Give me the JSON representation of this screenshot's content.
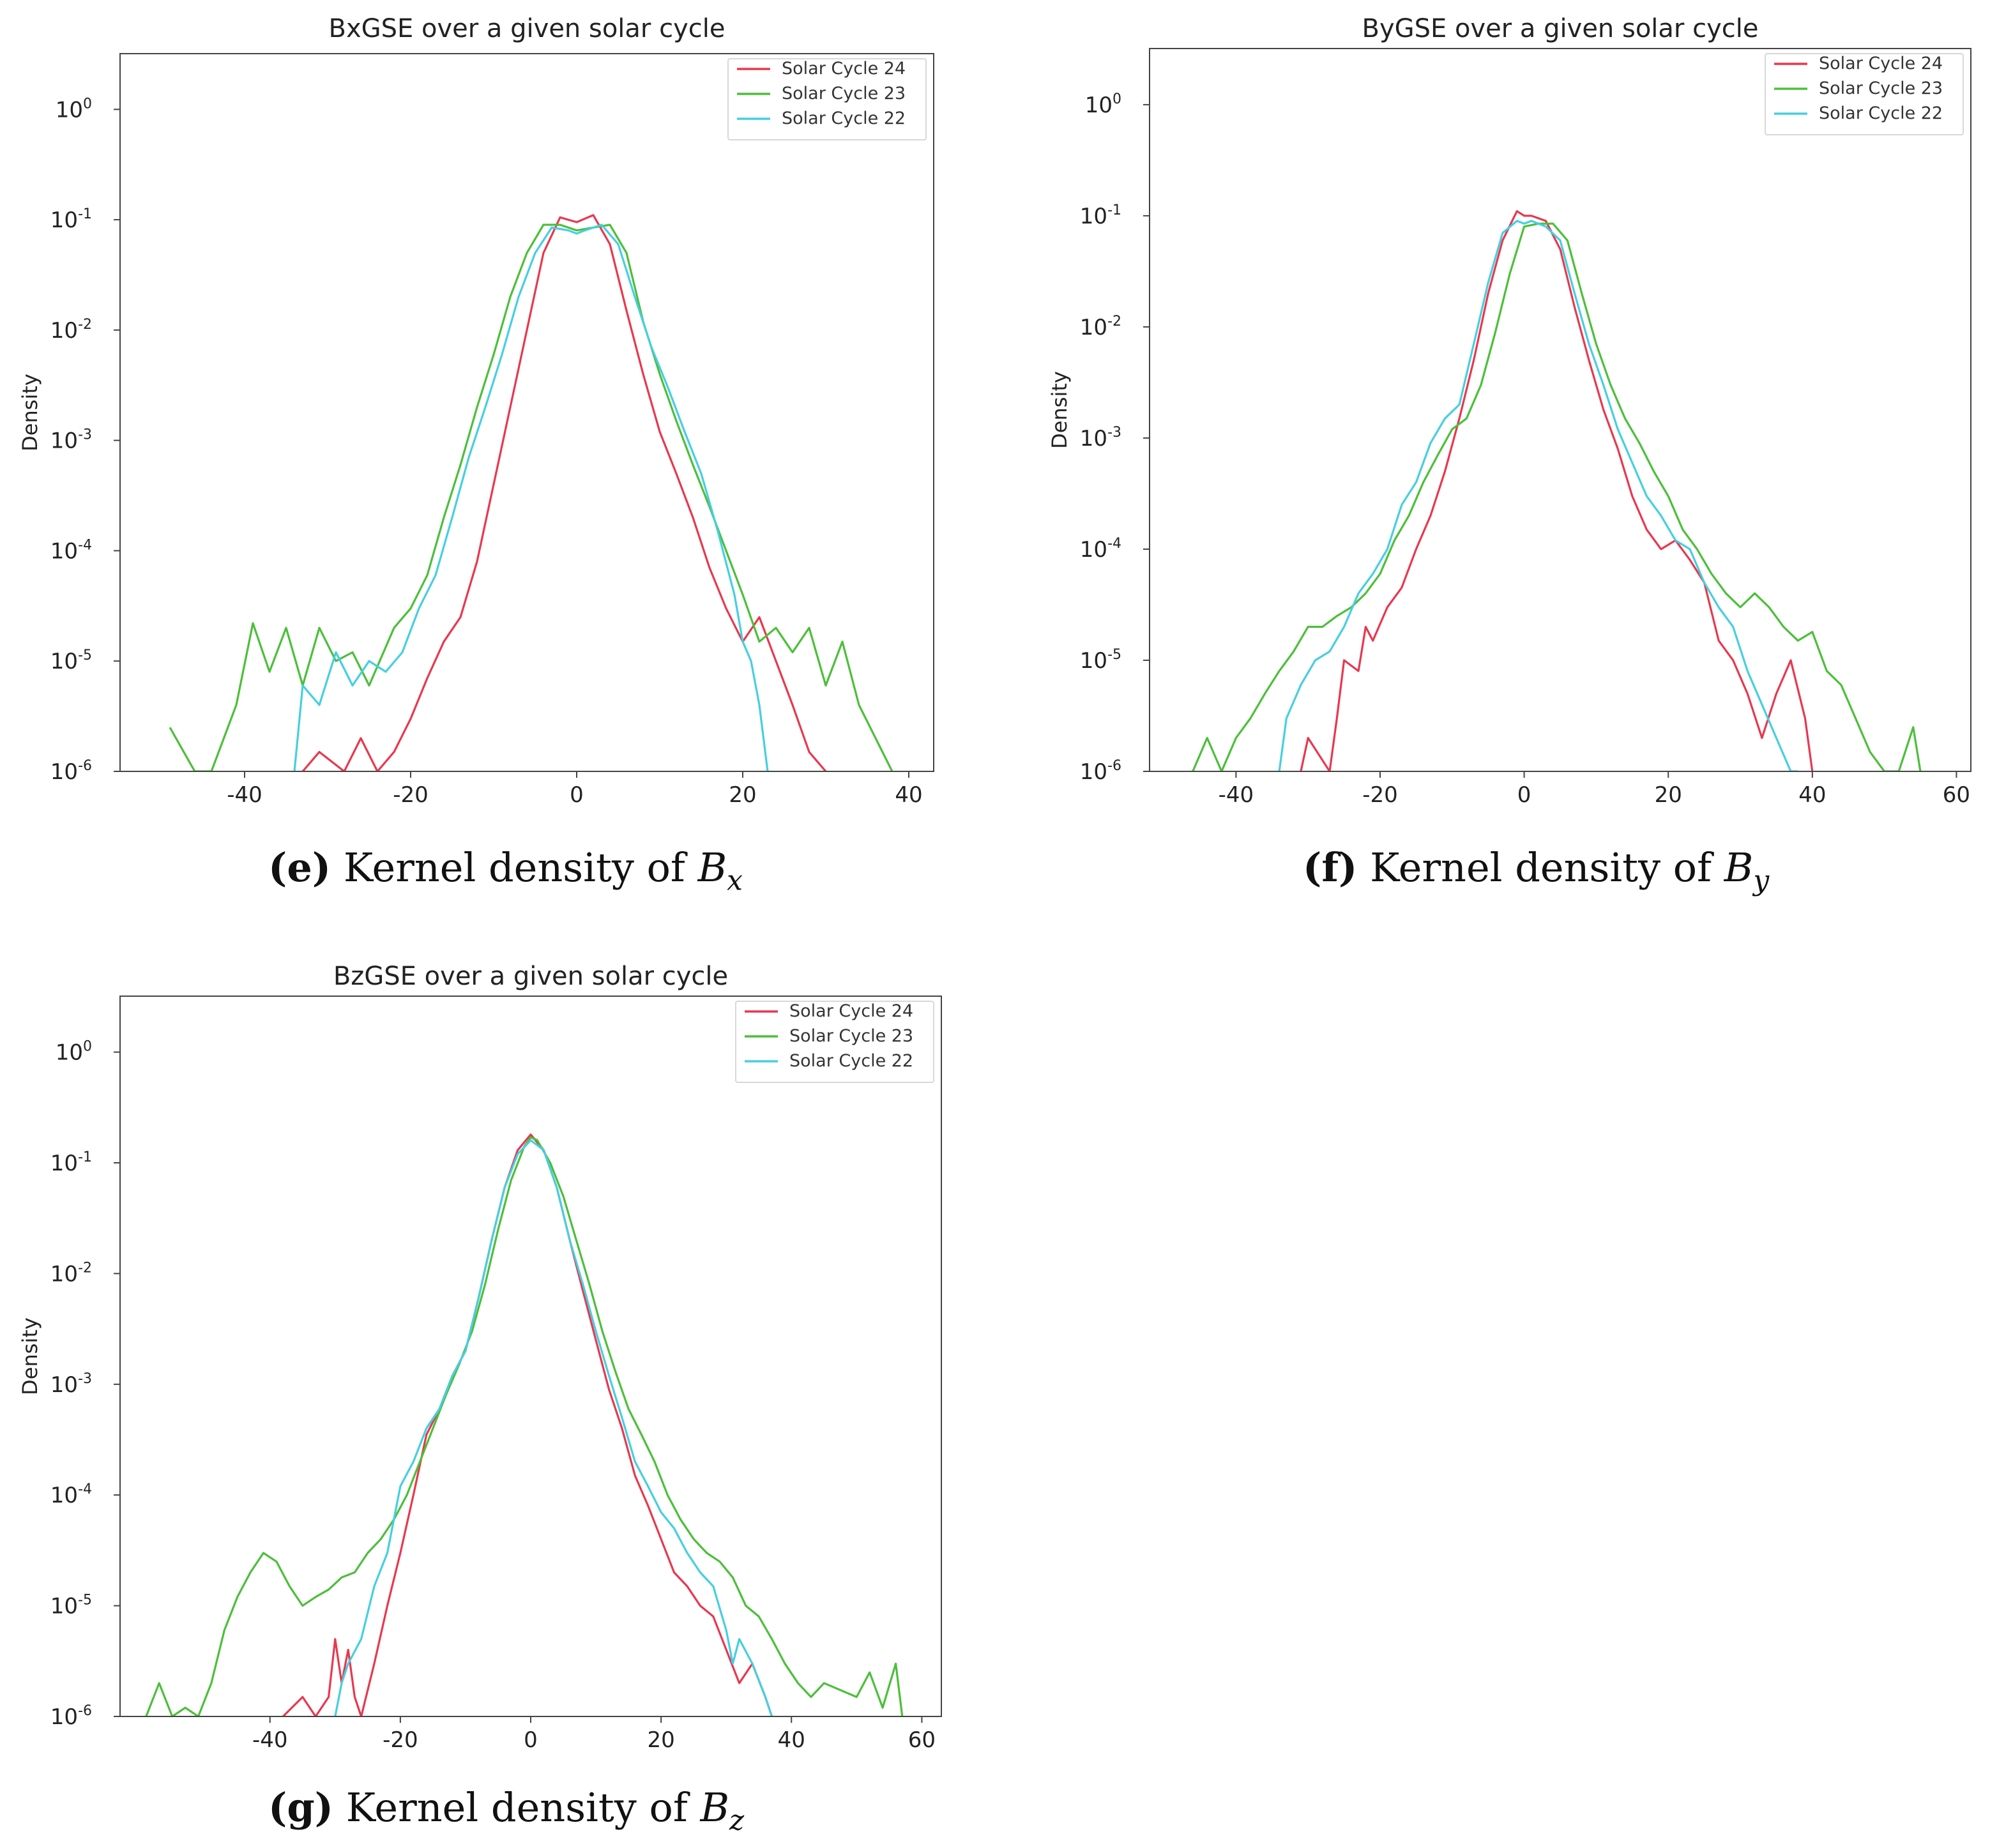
{
  "series_names": [
    "Solar Cycle 24",
    "Solar Cycle 23",
    "Solar Cycle 22"
  ],
  "series_colors": [
    "#e8384f",
    "#4cbf3a",
    "#46cfe0"
  ],
  "captions": [
    {
      "label": "(e)",
      "text": "Kernel density of ",
      "symbol": "B",
      "subscript": "x"
    },
    {
      "label": "(f)",
      "text": "Kernel density of ",
      "symbol": "B",
      "subscript": "y"
    },
    {
      "label": "(g)",
      "text": "Kernel density of ",
      "symbol": "B",
      "subscript": "z"
    }
  ],
  "chart_data": [
    {
      "type": "line",
      "title": "BxGSE over a given solar cycle",
      "xlabel": "",
      "ylabel": "Density",
      "yscale": "log",
      "xlim": [
        -55,
        43
      ],
      "ylim": [
        1e-06,
        3.2
      ],
      "xticks": [
        -40,
        -20,
        0,
        20,
        40
      ],
      "yticks": [
        {
          "value": 1,
          "base": "10",
          "exp": "0"
        },
        {
          "value": 0.1,
          "base": "10",
          "exp": "-1"
        },
        {
          "value": 0.01,
          "base": "10",
          "exp": "-2"
        },
        {
          "value": 0.001,
          "base": "10",
          "exp": "-3"
        },
        {
          "value": 0.0001,
          "base": "10",
          "exp": "-4"
        },
        {
          "value": 1e-05,
          "base": "10",
          "exp": "-5"
        },
        {
          "value": 1e-06,
          "base": "10",
          "exp": "-6"
        }
      ],
      "legend": "top-right",
      "series": [
        {
          "name": "Solar Cycle 24",
          "x": [
            -33,
            -31,
            -28,
            -26,
            -24,
            -22,
            -20,
            -18,
            -16,
            -14,
            -12,
            -10,
            -8,
            -6,
            -4,
            -2,
            0,
            2,
            4,
            6,
            8,
            10,
            12,
            14,
            16,
            18,
            20,
            22,
            24,
            26,
            28,
            30
          ],
          "y": [
            1e-06,
            1.5e-06,
            1e-06,
            2e-06,
            1e-06,
            1.5e-06,
            3e-06,
            7e-06,
            1.5e-05,
            2.5e-05,
            8e-05,
            0.0004,
            0.002,
            0.01,
            0.05,
            0.105,
            0.095,
            0.11,
            0.06,
            0.015,
            0.004,
            0.0012,
            0.0005,
            0.0002,
            7e-05,
            3e-05,
            1.5e-05,
            2.5e-05,
            1e-05,
            4e-06,
            1.5e-06,
            1e-06
          ]
        },
        {
          "name": "Solar Cycle 23",
          "x": [
            -49,
            -46,
            -44,
            -41,
            -39,
            -37,
            -35,
            -33,
            -31,
            -29,
            -27,
            -25,
            -22,
            -20,
            -18,
            -16,
            -14,
            -12,
            -10,
            -8,
            -6,
            -4,
            -2,
            0,
            2,
            4,
            6,
            8,
            10,
            12,
            14,
            16,
            18,
            20,
            22,
            24,
            26,
            28,
            30,
            32,
            34,
            36,
            38
          ],
          "y": [
            2.5e-06,
            1e-06,
            1e-06,
            4e-06,
            2.2e-05,
            8e-06,
            2e-05,
            6e-06,
            2e-05,
            1e-05,
            1.2e-05,
            6e-06,
            2e-05,
            3e-05,
            6e-05,
            0.0002,
            0.0006,
            0.002,
            0.006,
            0.02,
            0.05,
            0.09,
            0.09,
            0.08,
            0.085,
            0.09,
            0.05,
            0.012,
            0.004,
            0.0015,
            0.0006,
            0.00025,
            0.0001,
            4e-05,
            1.5e-05,
            2e-05,
            1.2e-05,
            2e-05,
            6e-06,
            1.5e-05,
            4e-06,
            2e-06,
            1e-06
          ]
        },
        {
          "name": "Solar Cycle 22",
          "x": [
            -34,
            -33,
            -31,
            -29,
            -27,
            -25,
            -23,
            -21,
            -19,
            -17,
            -15,
            -13,
            -11,
            -9,
            -7,
            -5,
            -3,
            -1,
            0,
            1,
            3,
            5,
            7,
            9,
            11,
            13,
            15,
            17,
            19,
            20,
            21,
            22,
            23
          ],
          "y": [
            1e-06,
            6e-06,
            4e-06,
            1.2e-05,
            6e-06,
            1e-05,
            8e-06,
            1.2e-05,
            3e-05,
            6e-05,
            0.0002,
            0.0007,
            0.002,
            0.006,
            0.02,
            0.05,
            0.085,
            0.08,
            0.075,
            0.08,
            0.09,
            0.06,
            0.02,
            0.007,
            0.003,
            0.0012,
            0.0005,
            0.00015,
            4e-05,
            1.5e-05,
            1e-05,
            4e-06,
            1e-06
          ]
        }
      ]
    },
    {
      "type": "line",
      "title": "ByGSE over a given solar cycle",
      "xlabel": "",
      "ylabel": "Density",
      "yscale": "log",
      "xlim": [
        -52,
        62
      ],
      "ylim": [
        1e-06,
        3.2
      ],
      "xticks": [
        -40,
        -20,
        0,
        20,
        40,
        60
      ],
      "yticks": [
        {
          "value": 1,
          "base": "10",
          "exp": "0"
        },
        {
          "value": 0.1,
          "base": "10",
          "exp": "-1"
        },
        {
          "value": 0.01,
          "base": "10",
          "exp": "-2"
        },
        {
          "value": 0.001,
          "base": "10",
          "exp": "-3"
        },
        {
          "value": 0.0001,
          "base": "10",
          "exp": "-4"
        },
        {
          "value": 1e-05,
          "base": "10",
          "exp": "-5"
        },
        {
          "value": 1e-06,
          "base": "10",
          "exp": "-6"
        }
      ],
      "legend": "top-right",
      "series": [
        {
          "name": "Solar Cycle 24",
          "x": [
            -31,
            -30,
            -27,
            -26,
            -25,
            -23,
            -22,
            -21,
            -19,
            -17,
            -15,
            -13,
            -11,
            -9,
            -7,
            -5,
            -3,
            -1,
            0,
            1,
            3,
            5,
            7,
            9,
            11,
            13,
            15,
            17,
            19,
            21,
            23,
            25,
            27,
            29,
            31,
            33,
            35,
            37,
            39,
            40
          ],
          "y": [
            1e-06,
            2e-06,
            1e-06,
            3e-06,
            1e-05,
            8e-06,
            2e-05,
            1.5e-05,
            3e-05,
            4.5e-05,
            0.0001,
            0.0002,
            0.0005,
            0.0015,
            0.005,
            0.02,
            0.06,
            0.11,
            0.1,
            0.1,
            0.09,
            0.05,
            0.015,
            0.005,
            0.0018,
            0.0008,
            0.0003,
            0.00015,
            0.0001,
            0.00012,
            8e-05,
            5e-05,
            1.5e-05,
            1e-05,
            5e-06,
            2e-06,
            5e-06,
            1e-05,
            3e-06,
            1e-06
          ]
        },
        {
          "name": "Solar Cycle 23",
          "x": [
            -46,
            -44,
            -42,
            -40,
            -38,
            -36,
            -34,
            -32,
            -30,
            -28,
            -26,
            -24,
            -22,
            -20,
            -18,
            -16,
            -14,
            -12,
            -10,
            -8,
            -6,
            -4,
            -2,
            0,
            2,
            4,
            6,
            8,
            10,
            12,
            14,
            16,
            18,
            20,
            22,
            24,
            26,
            28,
            30,
            32,
            34,
            36,
            38,
            40,
            42,
            44,
            46,
            48,
            50,
            52,
            54,
            55
          ],
          "y": [
            1e-06,
            2e-06,
            1e-06,
            2e-06,
            3e-06,
            5e-06,
            8e-06,
            1.2e-05,
            2e-05,
            2e-05,
            2.5e-05,
            3e-05,
            4e-05,
            6e-05,
            0.00012,
            0.0002,
            0.0004,
            0.0007,
            0.0012,
            0.0015,
            0.003,
            0.009,
            0.03,
            0.08,
            0.085,
            0.085,
            0.06,
            0.02,
            0.007,
            0.003,
            0.0015,
            0.0009,
            0.0005,
            0.0003,
            0.00015,
            0.0001,
            6e-05,
            4e-05,
            3e-05,
            4e-05,
            3e-05,
            2e-05,
            1.5e-05,
            1.8e-05,
            8e-06,
            6e-06,
            3e-06,
            1.5e-06,
            1e-06,
            1e-06,
            2.5e-06,
            1e-06
          ]
        },
        {
          "name": "Solar Cycle 22",
          "x": [
            -34,
            -33,
            -31,
            -29,
            -27,
            -25,
            -23,
            -21,
            -19,
            -17,
            -15,
            -13,
            -11,
            -9,
            -7,
            -5,
            -3,
            -1,
            0,
            1,
            3,
            5,
            7,
            9,
            11,
            13,
            15,
            17,
            19,
            21,
            23,
            25,
            27,
            29,
            31,
            33,
            35,
            37,
            38
          ],
          "y": [
            1e-06,
            3e-06,
            6e-06,
            1e-05,
            1.2e-05,
            2e-05,
            4e-05,
            6e-05,
            0.0001,
            0.00025,
            0.0004,
            0.0009,
            0.0015,
            0.002,
            0.007,
            0.025,
            0.07,
            0.09,
            0.085,
            0.09,
            0.08,
            0.06,
            0.02,
            0.007,
            0.003,
            0.0012,
            0.0006,
            0.0003,
            0.0002,
            0.00012,
            0.0001,
            5e-05,
            3e-05,
            2e-05,
            8e-06,
            4e-06,
            2e-06,
            1e-06,
            1e-06
          ]
        }
      ]
    },
    {
      "type": "line",
      "title": "BzGSE over a given solar cycle",
      "xlabel": "",
      "ylabel": "Density",
      "yscale": "log",
      "xlim": [
        -63,
        63
      ],
      "ylim": [
        1e-06,
        3.2
      ],
      "xticks": [
        -40,
        -20,
        0,
        20,
        40,
        60
      ],
      "yticks": [
        {
          "value": 1,
          "base": "10",
          "exp": "0"
        },
        {
          "value": 0.1,
          "base": "10",
          "exp": "-1"
        },
        {
          "value": 0.01,
          "base": "10",
          "exp": "-2"
        },
        {
          "value": 0.001,
          "base": "10",
          "exp": "-3"
        },
        {
          "value": 0.0001,
          "base": "10",
          "exp": "-4"
        },
        {
          "value": 1e-05,
          "base": "10",
          "exp": "-5"
        },
        {
          "value": 1e-06,
          "base": "10",
          "exp": "-6"
        }
      ],
      "legend": "top-right",
      "series": [
        {
          "name": "Solar Cycle 24",
          "x": [
            -38,
            -35,
            -33,
            -31,
            -30,
            -29,
            -28,
            -27,
            -26,
            -24,
            -22,
            -20,
            -18,
            -16,
            -14,
            -12,
            -10,
            -8,
            -6,
            -4,
            -2,
            0,
            2,
            4,
            6,
            8,
            10,
            12,
            14,
            16,
            18,
            20,
            22,
            24,
            26,
            28,
            30,
            32,
            34,
            36,
            37
          ],
          "y": [
            1e-06,
            1.5e-06,
            1e-06,
            1.5e-06,
            5e-06,
            2e-06,
            4e-06,
            1.5e-06,
            1e-06,
            3e-06,
            1e-05,
            3e-05,
            0.0001,
            0.00035,
            0.0006,
            0.0012,
            0.002,
            0.006,
            0.02,
            0.06,
            0.13,
            0.18,
            0.13,
            0.06,
            0.02,
            0.007,
            0.0025,
            0.0009,
            0.0004,
            0.00015,
            8e-05,
            4e-05,
            2e-05,
            1.5e-05,
            1e-05,
            8e-06,
            4e-06,
            2e-06,
            3e-06,
            1.5e-06,
            1e-06
          ]
        },
        {
          "name": "Solar Cycle 23",
          "x": [
            -59,
            -57,
            -55,
            -53,
            -51,
            -49,
            -47,
            -45,
            -43,
            -41,
            -39,
            -37,
            -35,
            -33,
            -31,
            -29,
            -27,
            -25,
            -23,
            -21,
            -19,
            -17,
            -15,
            -13,
            -11,
            -9,
            -7,
            -5,
            -3,
            -1,
            0,
            1,
            3,
            5,
            7,
            9,
            11,
            13,
            15,
            17,
            19,
            21,
            23,
            25,
            27,
            29,
            31,
            33,
            35,
            37,
            39,
            41,
            43,
            45,
            50,
            52,
            54,
            56,
            57
          ],
          "y": [
            1e-06,
            2e-06,
            1e-06,
            1.2e-06,
            1e-06,
            2e-06,
            6e-06,
            1.2e-05,
            2e-05,
            3e-05,
            2.5e-05,
            1.5e-05,
            1e-05,
            1.2e-05,
            1.4e-05,
            1.8e-05,
            2e-05,
            3e-05,
            4e-05,
            6e-05,
            0.0001,
            0.0002,
            0.0004,
            0.0008,
            0.0015,
            0.003,
            0.008,
            0.025,
            0.07,
            0.14,
            0.17,
            0.16,
            0.1,
            0.05,
            0.02,
            0.008,
            0.003,
            0.0013,
            0.0006,
            0.00035,
            0.0002,
            0.0001,
            6e-05,
            4e-05,
            3e-05,
            2.5e-05,
            1.8e-05,
            1e-05,
            8e-06,
            5e-06,
            3e-06,
            2e-06,
            1.5e-06,
            2e-06,
            1.5e-06,
            2.5e-06,
            1.2e-06,
            3e-06,
            1e-06
          ]
        },
        {
          "name": "Solar Cycle 22",
          "x": [
            -30,
            -29,
            -28,
            -26,
            -24,
            -22,
            -20,
            -18,
            -16,
            -14,
            -12,
            -10,
            -8,
            -6,
            -4,
            -2,
            0,
            2,
            4,
            6,
            8,
            10,
            12,
            14,
            16,
            18,
            20,
            22,
            24,
            26,
            28,
            30,
            31,
            32,
            34,
            36,
            37
          ],
          "y": [
            1e-06,
            2e-06,
            3e-06,
            5e-06,
            1.5e-05,
            3e-05,
            0.00012,
            0.0002,
            0.0004,
            0.0006,
            0.0012,
            0.002,
            0.006,
            0.02,
            0.06,
            0.12,
            0.16,
            0.13,
            0.06,
            0.02,
            0.008,
            0.003,
            0.0012,
            0.0005,
            0.0002,
            0.00012,
            7e-05,
            5e-05,
            3e-05,
            2e-05,
            1.5e-05,
            6e-06,
            3e-06,
            5e-06,
            3e-06,
            1.5e-06,
            1e-06
          ]
        }
      ]
    }
  ]
}
